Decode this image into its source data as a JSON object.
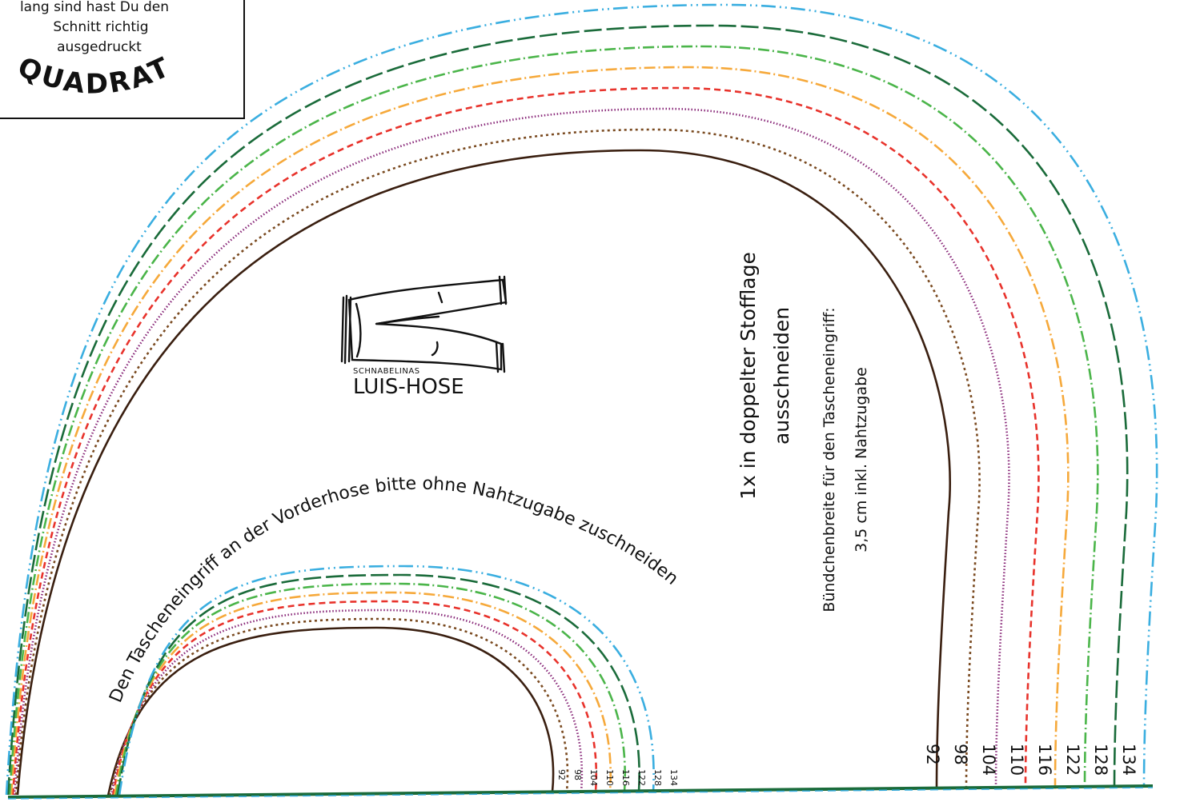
{
  "test_square": {
    "line1": "lang sind hast Du den",
    "line2": "Schnitt richtig",
    "line3": "ausgedruckt",
    "arc_word": "QUADRAT"
  },
  "logo": {
    "brand_small": "SCHNABELINAS",
    "brand_large": "LUIS-HOSE",
    "icon": "trousers-icon"
  },
  "instructions": {
    "cut_line1": "1x in doppelter Stofflage",
    "cut_line2": "ausschneiden",
    "cuff_line1": "Bündchenbreite für den Tascheneingriff:",
    "cuff_line2": "3,5 cm inkl. Nahtzugabe",
    "pocket_note": "Den Tascheneingriff an der Vorderhose bitte ohne Nahtzugabe zuschneiden"
  },
  "sizes": [
    {
      "label": "92",
      "color": "#3a1f10",
      "dash": ""
    },
    {
      "label": "98",
      "color": "#7a4a20",
      "dash": "3 4"
    },
    {
      "label": "104",
      "color": "#8a2a7a",
      "dash": "1.5 2.5"
    },
    {
      "label": "110",
      "color": "#e8332c",
      "dash": "8 5"
    },
    {
      "label": "116",
      "color": "#f6a93b",
      "dash": "14 4 2 4"
    },
    {
      "label": "122",
      "color": "#4bb54a",
      "dash": "14 4 2 4"
    },
    {
      "label": "128",
      "color": "#1a6b3a",
      "dash": "22 6"
    },
    {
      "label": "134",
      "color": "#3aaee0",
      "dash": "18 5 2 5 2 5"
    }
  ]
}
